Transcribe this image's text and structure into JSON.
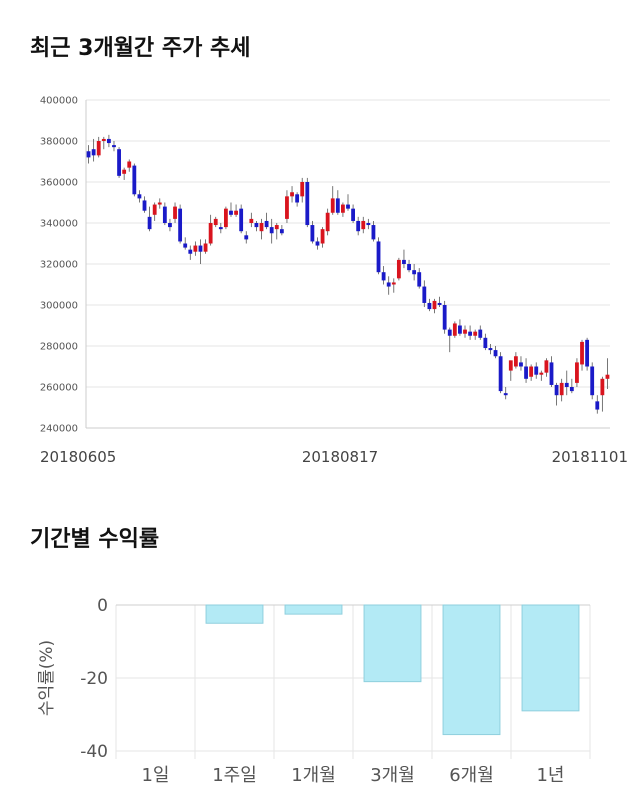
{
  "titles": {
    "price_trend": "최근 3개월간 주가 추세",
    "period_returns": "기간별 수익률"
  },
  "colors": {
    "up": "#d9141e",
    "down": "#1a1ac8",
    "wick": "#555555",
    "bar_fill": "#b3eaf5",
    "bar_stroke": "#8fcfdd",
    "grid": "#e5e5e5"
  },
  "chart_data": [
    {
      "type": "candlestick",
      "title": "최근 3개월간 주가 추세",
      "ylim": [
        240000,
        400000
      ],
      "yticks": [
        400000,
        380000,
        360000,
        340000,
        320000,
        300000,
        280000,
        260000,
        240000
      ],
      "xtick_labels": [
        "20180605",
        "20180817",
        "20181101"
      ],
      "grid": true,
      "candles": [
        [
          375000,
          378000,
          369000,
          372000
        ],
        [
          376000,
          381000,
          370000,
          373000
        ],
        [
          373000,
          382000,
          372000,
          380000
        ],
        [
          380000,
          382000,
          376000,
          381000
        ],
        [
          381000,
          383000,
          377000,
          379000
        ],
        [
          378000,
          380000,
          375000,
          377000
        ],
        [
          376000,
          377000,
          362000,
          363000
        ],
        [
          364000,
          367000,
          361000,
          366000
        ],
        [
          367000,
          371000,
          365000,
          370000
        ],
        [
          368000,
          369000,
          353000,
          354000
        ],
        [
          354000,
          356000,
          350000,
          352000
        ],
        [
          351000,
          353000,
          345000,
          346000
        ],
        [
          343000,
          348000,
          336000,
          337000
        ],
        [
          344000,
          350000,
          341000,
          349000
        ],
        [
          349000,
          352000,
          347000,
          350000
        ],
        [
          348000,
          350000,
          339000,
          340000
        ],
        [
          340000,
          342000,
          336000,
          338000
        ],
        [
          342000,
          350000,
          340000,
          348000
        ],
        [
          347000,
          349000,
          330000,
          331000
        ],
        [
          330000,
          333000,
          327000,
          328000
        ],
        [
          327000,
          329000,
          322000,
          325000
        ],
        [
          326000,
          331000,
          324000,
          329000
        ],
        [
          329000,
          332000,
          320000,
          326000
        ],
        [
          326000,
          332000,
          325000,
          330000
        ],
        [
          330000,
          344000,
          329000,
          340000
        ],
        [
          339000,
          343000,
          338000,
          342000
        ],
        [
          338000,
          340000,
          335000,
          337000
        ],
        [
          338000,
          348000,
          337000,
          347000
        ],
        [
          346000,
          350000,
          343000,
          344000
        ],
        [
          344000,
          349000,
          343000,
          346000
        ],
        [
          347000,
          349000,
          335000,
          336000
        ],
        [
          334000,
          336000,
          330000,
          332000
        ],
        [
          340000,
          345000,
          338000,
          342000
        ],
        [
          340000,
          341000,
          336000,
          338000
        ],
        [
          336000,
          342000,
          332000,
          340000
        ],
        [
          341000,
          345000,
          337000,
          338000
        ],
        [
          338000,
          342000,
          330000,
          335000
        ],
        [
          337000,
          340000,
          332000,
          339000
        ],
        [
          337000,
          339000,
          334000,
          335000
        ],
        [
          342000,
          356000,
          340000,
          353000
        ],
        [
          353000,
          358000,
          350000,
          355000
        ],
        [
          354000,
          355000,
          348000,
          350000
        ],
        [
          353000,
          362000,
          350000,
          360000
        ],
        [
          360000,
          362000,
          338000,
          339000
        ],
        [
          339000,
          341000,
          330000,
          331000
        ],
        [
          331000,
          333000,
          327000,
          329000
        ],
        [
          330000,
          338000,
          328000,
          337000
        ],
        [
          336000,
          347000,
          334000,
          345000
        ],
        [
          345000,
          358000,
          344000,
          352000
        ],
        [
          352000,
          356000,
          344000,
          345000
        ],
        [
          345000,
          350000,
          343000,
          349000
        ],
        [
          349000,
          354000,
          346000,
          347000
        ],
        [
          347000,
          349000,
          340000,
          341000
        ],
        [
          341000,
          343000,
          334000,
          336000
        ],
        [
          337000,
          343000,
          335000,
          341000
        ],
        [
          340000,
          342000,
          337000,
          339000
        ],
        [
          339000,
          341000,
          331000,
          332000
        ],
        [
          331000,
          333000,
          315000,
          316000
        ],
        [
          316000,
          319000,
          310000,
          312000
        ],
        [
          311000,
          314000,
          305000,
          309000
        ],
        [
          310000,
          313000,
          306000,
          311000
        ],
        [
          313000,
          323000,
          312000,
          322000
        ],
        [
          322000,
          327000,
          318000,
          320000
        ],
        [
          320000,
          322000,
          316000,
          317000
        ],
        [
          317000,
          320000,
          312000,
          315000
        ],
        [
          316000,
          318000,
          308000,
          309000
        ],
        [
          309000,
          312000,
          299000,
          301000
        ],
        [
          301000,
          303000,
          297000,
          298000
        ],
        [
          298000,
          303000,
          296000,
          302000
        ],
        [
          301000,
          304000,
          299000,
          300000
        ],
        [
          300000,
          302000,
          286000,
          288000
        ],
        [
          288000,
          289000,
          277000,
          285000
        ],
        [
          285000,
          292000,
          284000,
          291000
        ],
        [
          290000,
          293000,
          285000,
          286000
        ],
        [
          286000,
          290000,
          284000,
          288000
        ],
        [
          287000,
          290000,
          283000,
          285000
        ],
        [
          285000,
          288000,
          283000,
          287000
        ],
        [
          288000,
          290000,
          283000,
          284000
        ],
        [
          284000,
          286000,
          278000,
          279000
        ],
        [
          279000,
          281000,
          276000,
          278000
        ],
        [
          278000,
          280000,
          274000,
          275000
        ],
        [
          275000,
          277000,
          257000,
          258000
        ],
        [
          257000,
          260000,
          254000,
          256000
        ],
        [
          268000,
          273000,
          263000,
          273000
        ],
        [
          270000,
          277000,
          269000,
          275000
        ],
        [
          272000,
          275000,
          268000,
          270000
        ],
        [
          270000,
          274000,
          262000,
          264000
        ],
        [
          265000,
          271000,
          263000,
          270000
        ],
        [
          270000,
          272000,
          264000,
          266000
        ],
        [
          266000,
          268000,
          263000,
          267000
        ],
        [
          267000,
          274000,
          265000,
          273000
        ],
        [
          272000,
          275000,
          260000,
          261000
        ],
        [
          261000,
          262000,
          251000,
          256000
        ],
        [
          256000,
          264000,
          253000,
          262000
        ],
        [
          262000,
          268000,
          256000,
          260000
        ],
        [
          260000,
          264000,
          257000,
          258000
        ],
        [
          262000,
          274000,
          260000,
          272000
        ],
        [
          271000,
          283000,
          268000,
          282000
        ],
        [
          283000,
          284000,
          268000,
          270000
        ],
        [
          270000,
          272000,
          254000,
          256000
        ],
        [
          253000,
          256000,
          247000,
          249000
        ],
        [
          256000,
          265000,
          248000,
          264000
        ],
        [
          264000,
          274000,
          259000,
          266000
        ]
      ]
    },
    {
      "type": "bar",
      "title": "기간별 수익률",
      "ylabel": "수익률(%)",
      "categories": [
        "1일",
        "1주일",
        "1개월",
        "3개월",
        "6개월",
        "1년"
      ],
      "values": [
        0,
        -5,
        -2.5,
        -21,
        -35.5,
        -29
      ],
      "ylim": [
        -40,
        0
      ],
      "yticks": [
        0,
        -20,
        -40
      ],
      "grid": true
    }
  ]
}
